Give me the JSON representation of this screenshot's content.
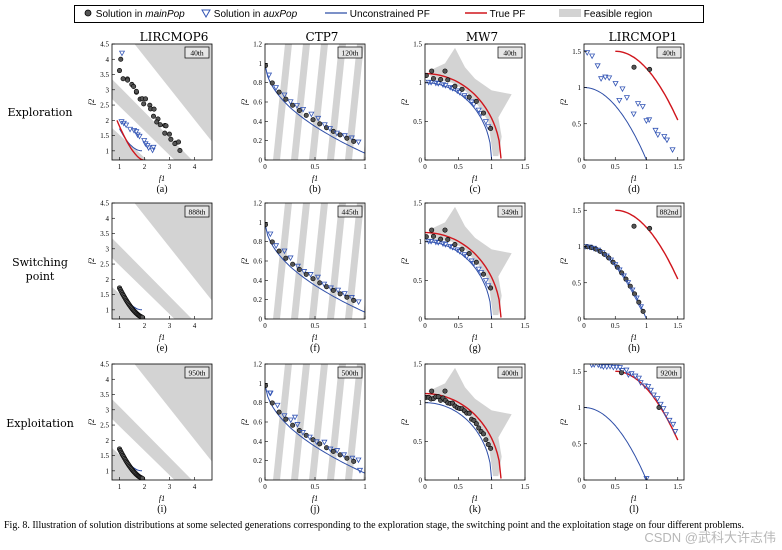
{
  "legend": {
    "main_pop_prefix": "Solution in ",
    "main_pop_name": "mainPop",
    "aux_pop_prefix": "Solution in ",
    "aux_pop_name": "auxPop",
    "unconstrained_pf": "Unconstrained PF",
    "true_pf": "True PF",
    "feasible_region": "Feasible region"
  },
  "columns": [
    "LIRCMOP6",
    "CTP7",
    "MW7",
    "LIRCMOP1"
  ],
  "rows": [
    {
      "line1": "Exploration",
      "line2": ""
    },
    {
      "line1": "Switching",
      "line2": "point"
    },
    {
      "line1": "Exploitation",
      "line2": ""
    }
  ],
  "caption": "Fig. 8.  Illustration of solution distributions at some selected generations corresponding to the exploration stage, the switching point and the exploitation stage on four different problems.",
  "watermark": "CSDN @武科大许志伟",
  "colors": {
    "unconstrained": "#2f4fa8",
    "true_pf": "#d0161d",
    "feasible": "#d3d3d3",
    "aux": "#3355b5",
    "main": "#555555"
  },
  "chart_data": [
    {
      "id": "a",
      "problem": "LIRCMOP6",
      "stage": "Exploration",
      "generation": "40th",
      "type": "scatter",
      "xlim": [
        0.7,
        4.7
      ],
      "ylim": [
        0.7,
        4.5
      ],
      "xticks": [
        "1",
        "2",
        "3",
        "4"
      ],
      "yticks": [
        "1",
        "1.5",
        "2",
        "2.5",
        "3",
        "3.5",
        "4",
        "4.5"
      ],
      "xlabel": "f1",
      "ylabel": "f2",
      "panel_label": "(a)"
    },
    {
      "id": "b",
      "problem": "CTP7",
      "stage": "Exploration",
      "generation": "120th",
      "type": "scatter",
      "xlim": [
        0,
        1
      ],
      "ylim": [
        0,
        1.2
      ],
      "xticks": [
        "0",
        "0.5",
        "1"
      ],
      "yticks": [
        "0",
        "0.2",
        "0.4",
        "0.6",
        "0.8",
        "1",
        "1.2"
      ],
      "xlabel": "f1",
      "ylabel": "f2",
      "panel_label": "(b)"
    },
    {
      "id": "c",
      "problem": "MW7",
      "stage": "Exploration",
      "generation": "40th",
      "type": "scatter",
      "xlim": [
        0,
        1.5
      ],
      "ylim": [
        0,
        1.5
      ],
      "xticks": [
        "0",
        "0.5",
        "1",
        "1.5"
      ],
      "yticks": [
        "0",
        "0.5",
        "1",
        "1.5"
      ],
      "xlabel": "f1",
      "ylabel": "f2",
      "panel_label": "(c)"
    },
    {
      "id": "d",
      "problem": "LIRCMOP1",
      "stage": "Exploration",
      "generation": "40th",
      "type": "scatter",
      "xlim": [
        0,
        1.6
      ],
      "ylim": [
        0,
        1.6
      ],
      "xticks": [
        "0",
        "0.5",
        "1",
        "1.5"
      ],
      "yticks": [
        "0",
        "0.5",
        "1",
        "1.5"
      ],
      "xlabel": "f1",
      "ylabel": "f2",
      "panel_label": "(d)"
    },
    {
      "id": "e",
      "problem": "LIRCMOP6",
      "stage": "Switching point",
      "generation": "888th",
      "type": "scatter",
      "xlim": [
        0.7,
        4.7
      ],
      "ylim": [
        0.7,
        4.5
      ],
      "xticks": [
        "1",
        "2",
        "3",
        "4"
      ],
      "yticks": [
        "1",
        "1.5",
        "2",
        "2.5",
        "3",
        "3.5",
        "4",
        "4.5"
      ],
      "xlabel": "f1",
      "ylabel": "f2",
      "panel_label": "(e)"
    },
    {
      "id": "f",
      "problem": "CTP7",
      "stage": "Switching point",
      "generation": "445th",
      "type": "scatter",
      "xlim": [
        0,
        1
      ],
      "ylim": [
        0,
        1.2
      ],
      "xticks": [
        "0",
        "0.5",
        "1"
      ],
      "yticks": [
        "0",
        "0.2",
        "0.4",
        "0.6",
        "0.8",
        "1",
        "1.2"
      ],
      "xlabel": "f1",
      "ylabel": "f2",
      "panel_label": "(f)"
    },
    {
      "id": "g",
      "problem": "MW7",
      "stage": "Switching point",
      "generation": "349th",
      "type": "scatter",
      "xlim": [
        0,
        1.5
      ],
      "ylim": [
        0,
        1.5
      ],
      "xticks": [
        "0",
        "0.5",
        "1",
        "1.5"
      ],
      "yticks": [
        "0",
        "0.5",
        "1",
        "1.5"
      ],
      "xlabel": "f1",
      "ylabel": "f2",
      "panel_label": "(g)"
    },
    {
      "id": "h",
      "problem": "LIRCMOP1",
      "stage": "Switching point",
      "generation": "882nd",
      "type": "scatter",
      "xlim": [
        0,
        1.6
      ],
      "ylim": [
        0,
        1.6
      ],
      "xticks": [
        "0",
        "0.5",
        "1",
        "1.5"
      ],
      "yticks": [
        "0",
        "0.5",
        "1",
        "1.5"
      ],
      "xlabel": "f1",
      "ylabel": "f2",
      "panel_label": "(h)"
    },
    {
      "id": "i",
      "problem": "LIRCMOP6",
      "stage": "Exploitation",
      "generation": "950th",
      "type": "scatter",
      "xlim": [
        0.7,
        4.7
      ],
      "ylim": [
        0.7,
        4.5
      ],
      "xticks": [
        "1",
        "2",
        "3",
        "4"
      ],
      "yticks": [
        "1",
        "1.5",
        "2",
        "2.5",
        "3",
        "3.5",
        "4",
        "4.5"
      ],
      "xlabel": "f1",
      "ylabel": "f2",
      "panel_label": "(i)"
    },
    {
      "id": "j",
      "problem": "CTP7",
      "stage": "Exploitation",
      "generation": "500th",
      "type": "scatter",
      "xlim": [
        0,
        1
      ],
      "ylim": [
        0,
        1.2
      ],
      "xticks": [
        "0",
        "0.5",
        "1"
      ],
      "yticks": [
        "0",
        "0.2",
        "0.4",
        "0.6",
        "0.8",
        "1",
        "1.2"
      ],
      "xlabel": "f1",
      "ylabel": "f2",
      "panel_label": "(j)"
    },
    {
      "id": "k",
      "problem": "MW7",
      "stage": "Exploitation",
      "generation": "400th",
      "type": "scatter",
      "xlim": [
        0,
        1.5
      ],
      "ylim": [
        0,
        1.5
      ],
      "xticks": [
        "0",
        "0.5",
        "1",
        "1.5"
      ],
      "yticks": [
        "0",
        "0.5",
        "1",
        "1.5"
      ],
      "xlabel": "f1",
      "ylabel": "f2",
      "panel_label": "(k)"
    },
    {
      "id": "l",
      "problem": "LIRCMOP1",
      "stage": "Exploitation",
      "generation": "920th",
      "type": "scatter",
      "xlim": [
        0,
        1.6
      ],
      "ylim": [
        0,
        1.6
      ],
      "xticks": [
        "0",
        "0.5",
        "1",
        "1.5"
      ],
      "yticks": [
        "0",
        "0.5",
        "1",
        "1.5"
      ],
      "xlabel": "f1",
      "ylabel": "f2",
      "panel_label": "(l)"
    }
  ]
}
